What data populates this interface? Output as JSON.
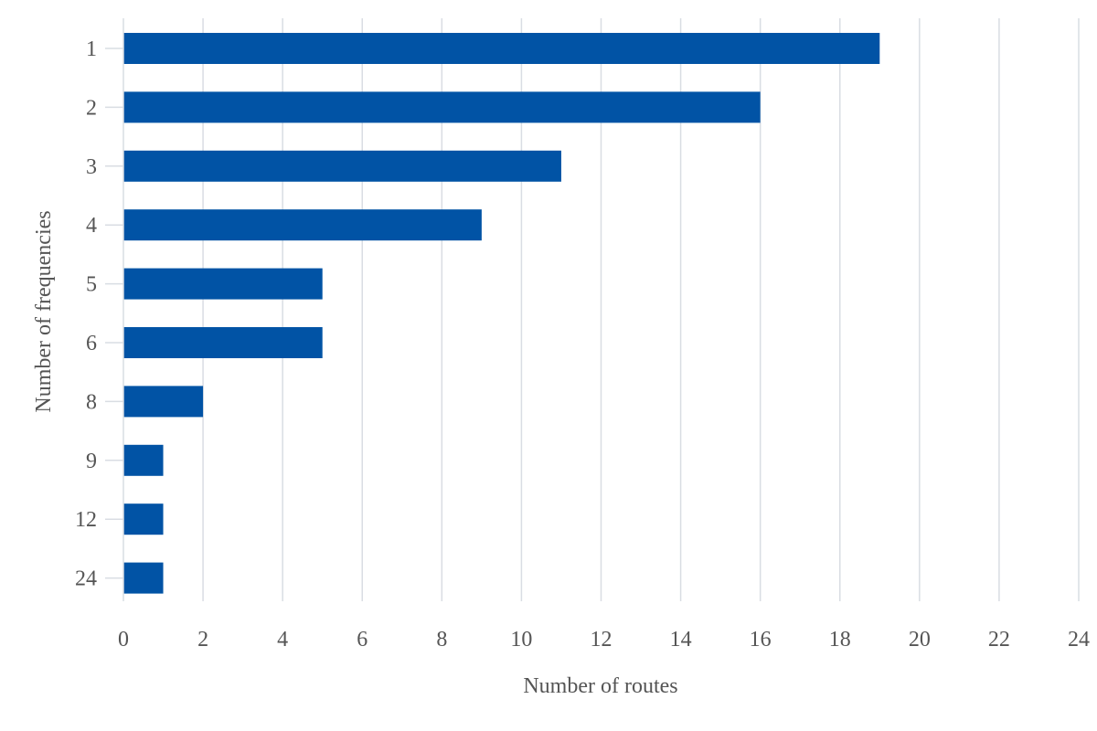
{
  "chart_data": {
    "type": "bar",
    "orientation": "horizontal",
    "categories": [
      "1",
      "2",
      "3",
      "4",
      "5",
      "6",
      "8",
      "9",
      "12",
      "24"
    ],
    "values": [
      19,
      16,
      11,
      9,
      5,
      5,
      2,
      1,
      1,
      1
    ],
    "xlabel": "Number of routes",
    "ylabel": "Number of frequencies",
    "xlim": [
      0,
      24
    ],
    "xticks": [
      "0",
      "2",
      "4",
      "6",
      "8",
      "10",
      "12",
      "14",
      "16",
      "18",
      "20",
      "22",
      "24"
    ],
    "grid": true,
    "legend": "none",
    "bar_color": "#0153a5",
    "grid_color": "#d9dde3",
    "text_color": "#555555"
  }
}
